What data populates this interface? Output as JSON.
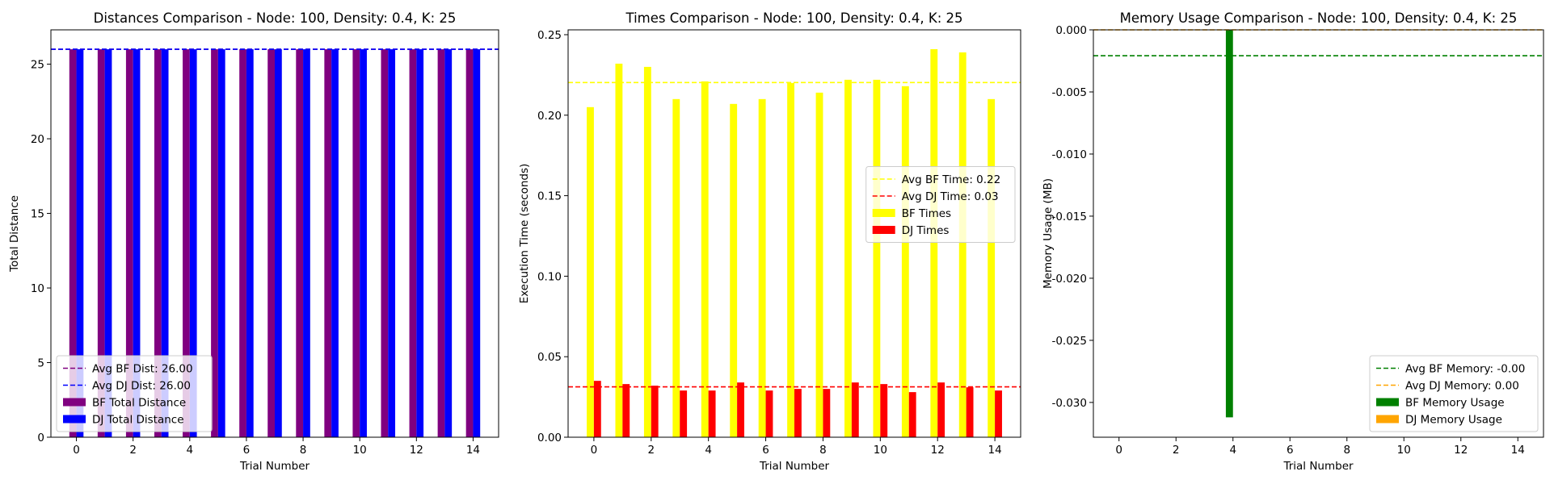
{
  "chart_data": [
    {
      "type": "bar",
      "title": "Distances Comparison - Node: 100, Density: 0.4, K: 25",
      "xlabel": "Trial Number",
      "ylabel": "Total Distance",
      "x": [
        0,
        1,
        2,
        3,
        4,
        5,
        6,
        7,
        8,
        9,
        10,
        11,
        12,
        13,
        14
      ],
      "xticks": [
        "0",
        "2",
        "4",
        "6",
        "8",
        "10",
        "12",
        "14"
      ],
      "yticks": [
        "0",
        "5",
        "10",
        "15",
        "20",
        "25"
      ],
      "xlim": [
        -0.9,
        14.9
      ],
      "ylim": [
        0,
        27.3
      ],
      "series": [
        {
          "name": "BF Total Distance",
          "color": "#800080",
          "values": [
            26,
            26,
            26,
            26,
            26,
            26,
            26,
            26,
            26,
            26,
            26,
            26,
            26,
            26,
            26
          ]
        },
        {
          "name": "DJ Total Distance",
          "color": "#0000ff",
          "values": [
            26,
            26,
            26,
            26,
            26,
            26,
            26,
            26,
            26,
            26,
            26,
            26,
            26,
            26,
            26
          ]
        }
      ],
      "avg_lines": [
        {
          "name": "Avg BF Dist: 26.00",
          "color": "#800080",
          "value": 26.0
        },
        {
          "name": "Avg DJ Dist: 26.00",
          "color": "#0000ff",
          "value": 26.0
        }
      ],
      "legend_position": "lower-left"
    },
    {
      "type": "bar",
      "title": "Times Comparison - Node: 100, Density: 0.4, K: 25",
      "xlabel": "Trial Number",
      "ylabel": "Execution Time (seconds)",
      "x": [
        0,
        1,
        2,
        3,
        4,
        5,
        6,
        7,
        8,
        9,
        10,
        11,
        12,
        13,
        14
      ],
      "xticks": [
        "0",
        "2",
        "4",
        "6",
        "8",
        "10",
        "12",
        "14"
      ],
      "yticks": [
        "0.00",
        "0.05",
        "0.10",
        "0.15",
        "0.20",
        "0.25"
      ],
      "xlim": [
        -0.9,
        14.9
      ],
      "ylim": [
        0,
        0.253
      ],
      "series": [
        {
          "name": "BF Times",
          "color": "#ffff00",
          "values": [
            0.205,
            0.232,
            0.23,
            0.21,
            0.221,
            0.207,
            0.21,
            0.22,
            0.214,
            0.222,
            0.222,
            0.218,
            0.241,
            0.239,
            0.21
          ]
        },
        {
          "name": "DJ Times",
          "color": "#ff0000",
          "values": [
            0.035,
            0.033,
            0.032,
            0.029,
            0.029,
            0.034,
            0.029,
            0.03,
            0.03,
            0.034,
            0.033,
            0.028,
            0.034,
            0.031,
            0.029
          ]
        }
      ],
      "avg_lines": [
        {
          "name": "Avg BF Time: 0.22",
          "color": "#ffff00",
          "value": 0.2203
        },
        {
          "name": "Avg DJ Time: 0.03",
          "color": "#ff0000",
          "value": 0.0313
        }
      ],
      "legend_position": "center-right"
    },
    {
      "type": "bar",
      "title": "Memory Usage Comparison - Node: 100, Density: 0.4, K: 25",
      "xlabel": "Trial Number",
      "ylabel": "Memory Usage (MB)",
      "x": [
        0,
        1,
        2,
        3,
        4,
        5,
        6,
        7,
        8,
        9,
        10,
        11,
        12,
        13,
        14
      ],
      "xticks": [
        "0",
        "2",
        "4",
        "6",
        "8",
        "10",
        "12",
        "14"
      ],
      "yticks": [
        "0.000",
        "-0.005",
        "-0.010",
        "-0.015",
        "-0.020",
        "-0.025",
        "-0.030"
      ],
      "xlim": [
        -0.9,
        14.9
      ],
      "ylim": [
        -0.0328,
        0.0
      ],
      "series": [
        {
          "name": "BF Memory Usage",
          "color": "#008000",
          "values": [
            0,
            0,
            0,
            0,
            -0.0312,
            0,
            0,
            0,
            0,
            0,
            0,
            0,
            0,
            0,
            0
          ]
        },
        {
          "name": "DJ Memory Usage",
          "color": "#ffa500",
          "values": [
            0,
            0,
            0,
            0,
            0,
            0,
            0,
            0,
            0,
            0,
            0,
            0,
            0,
            0,
            0
          ]
        }
      ],
      "avg_lines": [
        {
          "name": "Avg BF Memory: -0.00",
          "color": "#008000",
          "value": -0.00208
        },
        {
          "name": "Avg DJ Memory: 0.00",
          "color": "#ffa500",
          "value": 0.0
        }
      ],
      "legend_position": "lower-right"
    }
  ]
}
